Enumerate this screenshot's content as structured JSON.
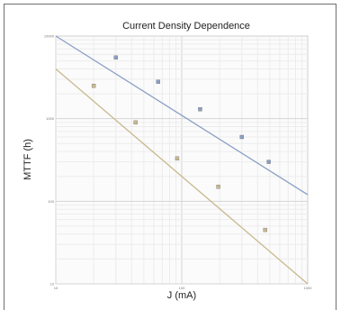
{
  "chart_data": {
    "type": "scatter",
    "title": "Current Density Dependence",
    "xlabel": "J (mA)",
    "ylabel": "MTTF (h)",
    "x_scale": "log",
    "y_scale": "log",
    "xlim": [
      10,
      1000
    ],
    "ylim": [
      10,
      10000
    ],
    "grid": true,
    "legend": "none",
    "xticks": [
      "10",
      "100",
      "1000"
    ],
    "yticks": [
      "10",
      "100",
      "1000",
      "10000"
    ],
    "series": [
      {
        "color": "#8a9fc4",
        "points": [
          [
            30,
            5500
          ],
          [
            65,
            2800
          ],
          [
            140,
            1300
          ],
          [
            300,
            600
          ],
          [
            490,
            300
          ]
        ],
        "fit": [
          [
            10,
            10000
          ],
          [
            1000,
            120
          ]
        ]
      },
      {
        "color": "#c9b98f",
        "points": [
          [
            20,
            2500
          ],
          [
            43,
            900
          ],
          [
            92,
            330
          ],
          [
            195,
            150
          ],
          [
            460,
            45
          ]
        ],
        "fit": [
          [
            10,
            4000
          ],
          [
            1000,
            10
          ]
        ]
      }
    ]
  }
}
